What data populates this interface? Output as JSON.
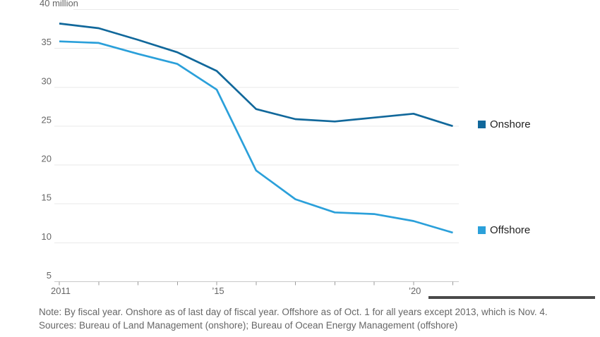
{
  "chart_data": {
    "type": "line",
    "x": [
      2011,
      2012,
      2013,
      2014,
      2015,
      2016,
      2017,
      2018,
      2019,
      2020,
      2021
    ],
    "series": [
      {
        "name": "Onshore",
        "color": "#11689b",
        "values": [
          38.2,
          37.6,
          36.1,
          34.5,
          32.1,
          27.2,
          25.9,
          25.6,
          26.1,
          26.6,
          25.0
        ]
      },
      {
        "name": "Offshore",
        "color": "#2ba0da",
        "values": [
          35.9,
          35.7,
          34.3,
          33.0,
          29.7,
          19.3,
          15.6,
          13.9,
          13.7,
          12.8,
          11.3
        ]
      }
    ],
    "title": "",
    "xlabel": "",
    "ylabel": "",
    "ylim": [
      5,
      40
    ],
    "yticks": [
      5,
      10,
      15,
      20,
      25,
      30,
      35,
      40
    ],
    "y_top_tick_label": "40 million",
    "xtick_years": [
      2011,
      2012,
      2013,
      2014,
      2015,
      2016,
      2017,
      2018,
      2019,
      2020,
      2021
    ],
    "xtick_labels": {
      "2011": "2011",
      "2015": "’15",
      "2020": "’20"
    },
    "grid": true,
    "legend_position": "right of line ends",
    "colors": {
      "gridline": "#e9e9e9",
      "axis_line": "#c9c9c9",
      "tick_mark": "#9b9b9b",
      "axis_text": "#666666"
    }
  },
  "legend": {
    "items": [
      {
        "label": "Onshore"
      },
      {
        "label": "Offshore"
      }
    ]
  },
  "notes": {
    "note": "Note: By fiscal year. Onshore as of last day of fiscal year. Offshore as of Oct. 1 for all years except 2013, which is Nov. 4.",
    "sources": "Sources: Bureau of Land Management (onshore); Bureau of Ocean Energy Management (offshore)"
  }
}
